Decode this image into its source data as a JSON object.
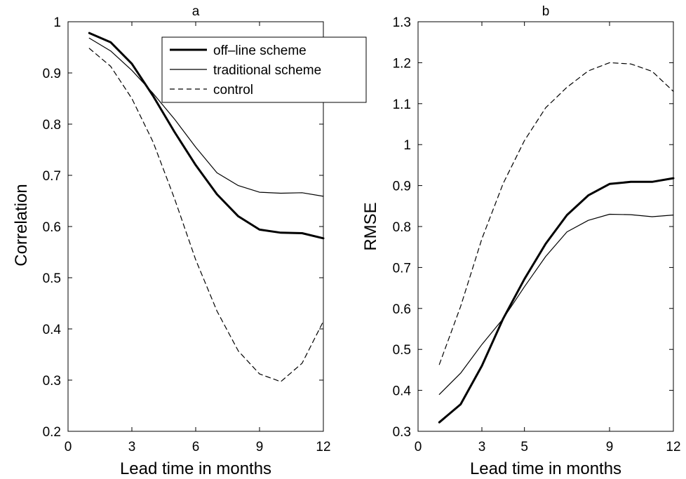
{
  "chart_data": [
    {
      "type": "line",
      "title": "a",
      "xlabel": "Lead time in months",
      "ylabel": "Correlation",
      "xlim": [
        0,
        12
      ],
      "ylim": [
        0.2,
        1
      ],
      "xticks": [
        0,
        3,
        6,
        9,
        12
      ],
      "yticks": [
        0.2,
        0.3,
        0.4,
        0.5,
        0.6,
        0.7,
        0.8,
        0.9,
        1
      ],
      "grid": false,
      "legend": {
        "placement": "top-right"
      },
      "x": [
        1,
        2,
        3,
        4,
        5,
        6,
        7,
        8,
        9,
        10,
        11,
        12
      ],
      "series": [
        {
          "name": "off–line scheme",
          "style": "thick-solid",
          "values": [
            0.978,
            0.96,
            0.918,
            0.855,
            0.785,
            0.72,
            0.663,
            0.62,
            0.594,
            0.588,
            0.587,
            0.577
          ]
        },
        {
          "name": "traditional scheme",
          "style": "thin-solid",
          "values": [
            0.968,
            0.943,
            0.905,
            0.86,
            0.81,
            0.755,
            0.705,
            0.68,
            0.667,
            0.665,
            0.666,
            0.659
          ]
        },
        {
          "name": "control",
          "style": "dashed",
          "values": [
            0.948,
            0.913,
            0.85,
            0.765,
            0.655,
            0.535,
            0.435,
            0.357,
            0.312,
            0.297,
            0.333,
            0.415
          ]
        }
      ]
    },
    {
      "type": "line",
      "title": "b",
      "xlabel": "Lead time in months",
      "ylabel": "RMSE",
      "xlim": [
        0,
        12
      ],
      "ylim": [
        0.3,
        1.3
      ],
      "xticks": [
        0,
        3,
        5,
        9,
        12
      ],
      "yticks": [
        0.3,
        0.4,
        0.5,
        0.6,
        0.7,
        0.8,
        0.9,
        1,
        1.1,
        1.2,
        1.3
      ],
      "grid": false,
      "x": [
        1,
        2,
        3,
        4,
        5,
        6,
        7,
        8,
        9,
        10,
        11,
        12
      ],
      "series": [
        {
          "name": "off–line scheme",
          "style": "thick-solid",
          "values": [
            0.322,
            0.366,
            0.46,
            0.575,
            0.672,
            0.758,
            0.828,
            0.876,
            0.904,
            0.909,
            0.909,
            0.918
          ]
        },
        {
          "name": "traditional scheme",
          "style": "thin-solid",
          "values": [
            0.39,
            0.442,
            0.512,
            0.575,
            0.653,
            0.727,
            0.787,
            0.815,
            0.83,
            0.829,
            0.824,
            0.828
          ]
        },
        {
          "name": "control",
          "style": "dashed",
          "values": [
            0.463,
            0.605,
            0.77,
            0.905,
            1.01,
            1.09,
            1.14,
            1.18,
            1.2,
            1.197,
            1.179,
            1.13
          ]
        }
      ]
    }
  ]
}
